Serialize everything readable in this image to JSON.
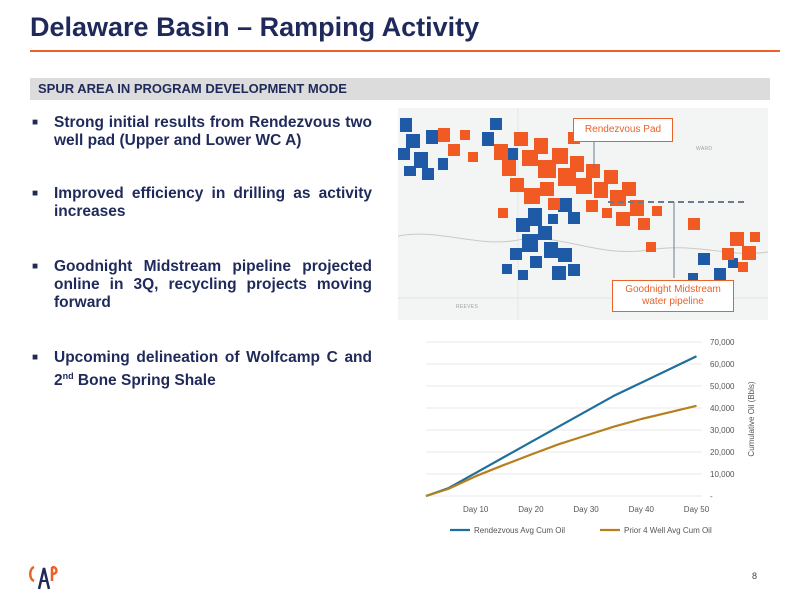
{
  "slide": {
    "title": "Delaware Basin – Ramping Activity",
    "section_label": "SPUR AREA IN PROGRAM DEVELOPMENT MODE",
    "bullets": [
      {
        "text": "Strong initial results from Rendezvous two well pad (Upper and Lower WC A)"
      },
      {
        "text": "Improved efficiency in drilling as activity increases"
      },
      {
        "text": "Goodnight Midstream pipeline projected online in 3Q, recycling projects moving forward"
      },
      {
        "text_before": "Upcoming delineation of Wolfcamp C and 2",
        "sup": "nd",
        "text_after": " Bone Spring Shale"
      }
    ],
    "page_number": "8"
  },
  "map": {
    "callout_pad": "Rendezvous Pad",
    "callout_pipeline": "Goodnight Midstream water pipeline",
    "county_ward": "WARD",
    "county_reeves": "REEVES",
    "colors": {
      "orange": "#f15a22",
      "blue": "#1f5aa6",
      "pipeline": "#6b7a8c"
    }
  },
  "chart_data": {
    "type": "line",
    "x": [
      1,
      5,
      10,
      15,
      20,
      25,
      30,
      35,
      40,
      45,
      50
    ],
    "x_tick_labels": [
      "Day 10",
      "Day 20",
      "Day 30",
      "Day 40",
      "Day 50"
    ],
    "x_tick_values": [
      10,
      20,
      30,
      40,
      50
    ],
    "xlim": [
      1,
      51
    ],
    "ylabel": "Cumulative Oil (Bbls)",
    "ylim": [
      0,
      70000
    ],
    "y_ticks": [
      0,
      10000,
      20000,
      30000,
      40000,
      50000,
      60000,
      70000
    ],
    "y_tick_labels": [
      "-",
      "10,000",
      "20,000",
      "30,000",
      "40,000",
      "50,000",
      "60,000",
      "70,000"
    ],
    "grid": true,
    "legend_position": "bottom",
    "series": [
      {
        "name": "Rendezvous Avg Cum Oil",
        "color": "#1f6f9e",
        "values": [
          0,
          3500,
          10500,
          17500,
          24500,
          31500,
          38500,
          45500,
          51500,
          57500,
          63500
        ]
      },
      {
        "name": "Prior 4 Well Avg Cum Oil",
        "color": "#b5801d",
        "values": [
          0,
          3200,
          9000,
          14000,
          18800,
          23500,
          27500,
          31500,
          35000,
          38000,
          41000
        ]
      }
    ]
  }
}
